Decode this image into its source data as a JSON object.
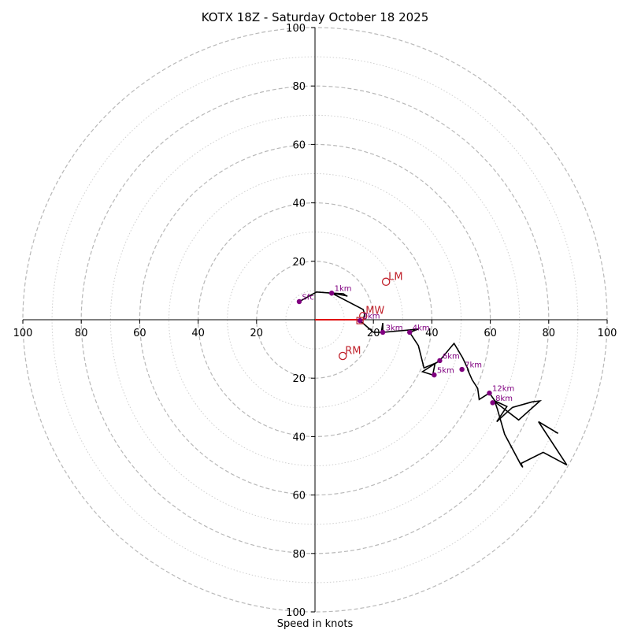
{
  "chart_data": {
    "type": "hodograph",
    "title": "KOTX 18Z - Saturday October 18 2025",
    "xlabel": "Speed in knots",
    "range": 100,
    "ring_dashed": [
      20,
      40,
      60,
      80,
      100
    ],
    "ring_dotted": [
      10,
      30,
      50,
      70,
      90
    ],
    "x_ticks": [
      {
        "value": -100,
        "label": "100"
      },
      {
        "value": -80,
        "label": "80"
      },
      {
        "value": -60,
        "label": "60"
      },
      {
        "value": -40,
        "label": "40"
      },
      {
        "value": -20,
        "label": "20"
      },
      {
        "value": 20,
        "label": "20"
      },
      {
        "value": 40,
        "label": "40"
      },
      {
        "value": 60,
        "label": "60"
      },
      {
        "value": 80,
        "label": "80"
      },
      {
        "value": 100,
        "label": "100"
      }
    ],
    "y_ticks": [
      {
        "value": 100,
        "label": "100"
      },
      {
        "value": 80,
        "label": "80"
      },
      {
        "value": 60,
        "label": "60"
      },
      {
        "value": 40,
        "label": "40"
      },
      {
        "value": 20,
        "label": "20"
      },
      {
        "value": -20,
        "label": "20"
      },
      {
        "value": -40,
        "label": "40"
      },
      {
        "value": -60,
        "label": "60"
      },
      {
        "value": -80,
        "label": "80"
      },
      {
        "value": -100,
        "label": "100"
      }
    ],
    "trace": [
      [
        -5.4,
        6.2
      ],
      [
        0.5,
        9.5
      ],
      [
        5.7,
        9.1
      ],
      [
        11.1,
        8.1
      ],
      [
        10.8,
        8.1
      ],
      [
        9.7,
        8.9
      ],
      [
        5.7,
        9.1
      ],
      [
        16.5,
        3.5
      ],
      [
        17.0,
        1.9
      ],
      [
        16.5,
        0.0
      ],
      [
        15.7,
        -0.3
      ],
      [
        16.2,
        -1.1
      ],
      [
        15.4,
        -0.3
      ],
      [
        20.0,
        -4.3
      ],
      [
        22.7,
        -4.3
      ],
      [
        23.2,
        -1.1
      ],
      [
        23.2,
        -4.3
      ],
      [
        35.4,
        -3.2
      ],
      [
        32.4,
        -4.3
      ],
      [
        35.4,
        -8.9
      ],
      [
        37.3,
        -16.5
      ],
      [
        41.1,
        -14.9
      ],
      [
        40.3,
        -18.9
      ],
      [
        36.8,
        -17.8
      ],
      [
        42.7,
        -14.0
      ],
      [
        46.5,
        -9.4
      ],
      [
        47.6,
        -8.1
      ],
      [
        50.5,
        -13.0
      ],
      [
        52.4,
        -17.0
      ],
      [
        52.7,
        -18.1
      ],
      [
        52.2,
        -17.0
      ],
      [
        53.8,
        -20.6
      ],
      [
        55.7,
        -23.5
      ],
      [
        56.2,
        -27.3
      ],
      [
        59.7,
        -25.1
      ],
      [
        61.6,
        -27.8
      ],
      [
        65.7,
        -29.7
      ],
      [
        62.2,
        -34.9
      ],
      [
        64.9,
        -32.4
      ],
      [
        67.6,
        -30.0
      ],
      [
        74.3,
        -28.1
      ],
      [
        77.0,
        -27.8
      ],
      [
        69.7,
        -34.3
      ],
      [
        61.6,
        -28.1
      ],
      [
        62.4,
        -30.5
      ],
      [
        64.9,
        -39.2
      ],
      [
        70.5,
        -49.7
      ],
      [
        71.1,
        -50.5
      ],
      [
        70.5,
        -49.2
      ],
      [
        78.1,
        -45.4
      ],
      [
        86.2,
        -49.7
      ],
      [
        76.5,
        -34.9
      ],
      [
        83.2,
        -38.9
      ],
      [
        82.2,
        -38.4
      ]
    ],
    "heights": [
      {
        "label": "Sfc",
        "u": -5.4,
        "v": 6.2
      },
      {
        "label": "1km",
        "u": 5.7,
        "v": 9.1
      },
      {
        "label": "2km",
        "u": 15.4,
        "v": -0.3
      },
      {
        "label": "3km",
        "u": 23.2,
        "v": -4.3
      },
      {
        "label": "4km",
        "u": 32.4,
        "v": -4.3
      },
      {
        "label": "5km",
        "u": 40.8,
        "v": -18.9
      },
      {
        "label": "6km",
        "u": 42.7,
        "v": -14.0
      },
      {
        "label": "7km",
        "u": 50.3,
        "v": -17.0
      },
      {
        "label": "8km",
        "u": 60.8,
        "v": -28.4
      },
      {
        "label": "12km",
        "u": 59.7,
        "v": -25.1
      }
    ],
    "motion_markers": [
      {
        "label": "LM",
        "u": 24.3,
        "v": 13.0
      },
      {
        "label": "MW",
        "u": 16.5,
        "v": 1.3
      },
      {
        "label": "RM",
        "u": 9.5,
        "v": -12.4
      }
    ],
    "storm_motion_vector": {
      "u": 16.5,
      "v": 0.0
    },
    "colors": {
      "trace": "#000000",
      "height_marker": "#800080",
      "motion_marker": "#c0202a",
      "ring": "#b8b8b8",
      "axis": "#000000"
    }
  }
}
